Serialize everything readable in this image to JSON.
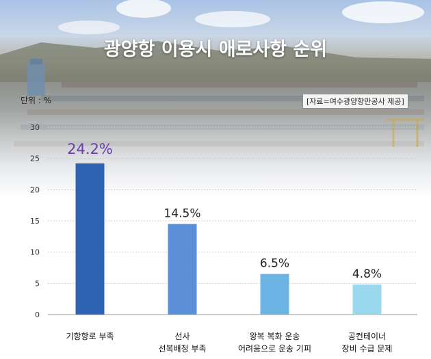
{
  "title": "광양항 이용시 애로사항 순위",
  "unit_label": "단위 : %",
  "source": "[자료=여수광양항만공사 제공]",
  "colors": {
    "bars": [
      "#2f63b3",
      "#5b8fd6",
      "#6cb4e4",
      "#9ad8ee"
    ],
    "highlight_label": "#6b3ea8"
  },
  "chart_data": {
    "type": "bar",
    "title": "광양항 이용시 애로사항 순위",
    "ylabel": "단위 : %",
    "xlabel": "",
    "categories": [
      [
        "기항항로 부족"
      ],
      [
        "선사",
        "선복배정 부족"
      ],
      [
        "왕복 복화 운송",
        "어려움으로 운송 기피"
      ],
      [
        "공컨테이너",
        "장비 수급 문제"
      ]
    ],
    "values": [
      24.2,
      14.5,
      6.5,
      4.8
    ],
    "value_labels": [
      "24.2%",
      "14.5%",
      "6.5%",
      "4.8%"
    ],
    "ylim": [
      0,
      30
    ],
    "yticks": [
      0,
      5,
      10,
      15,
      20,
      25,
      30
    ],
    "grid": true,
    "legend": "none"
  }
}
